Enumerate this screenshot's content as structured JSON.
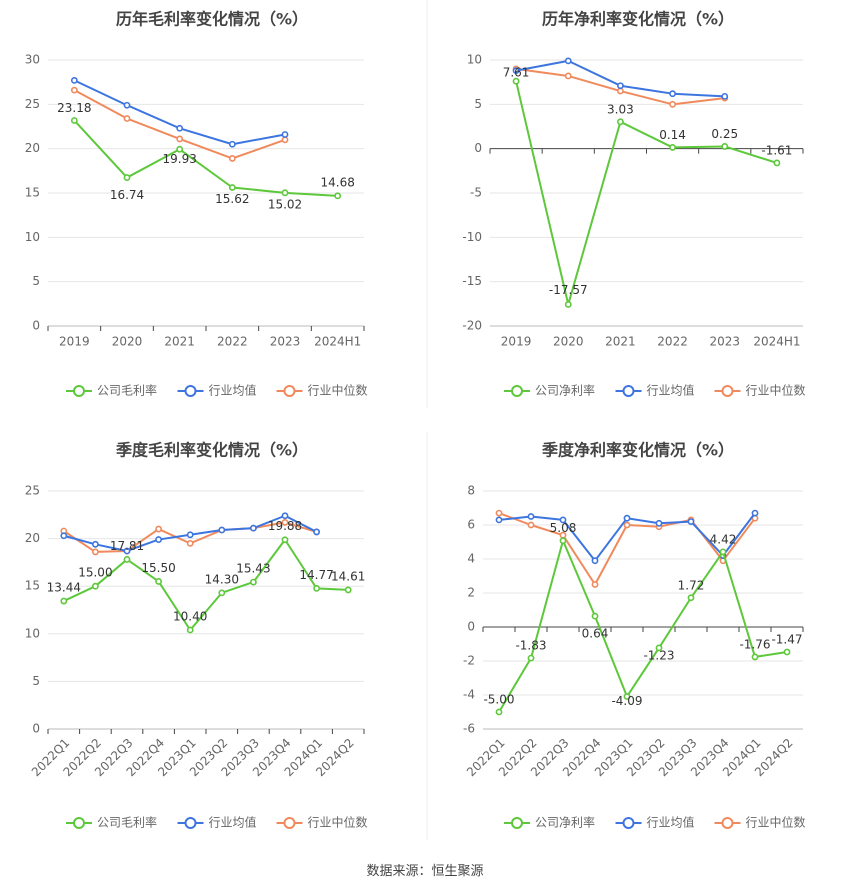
{
  "colors": {
    "company": "#5cc83a",
    "avg": "#3d75e0",
    "median": "#f08a5d",
    "grid": "#e6e6e6",
    "axis": "#bbbbbb",
    "tick": "#666666",
    "title": "#444444",
    "label": "#333333"
  },
  "legend_labels": [
    "公司毛利率",
    "行业均值",
    "行业中位数",
    "公司净利率"
  ],
  "source": "数据来源：恒生聚源",
  "chart_data": [
    {
      "type": "line",
      "title": "历年毛利率变化情况（%）",
      "categories": [
        "2019",
        "2020",
        "2021",
        "2022",
        "2023",
        "2024H1"
      ],
      "ylim": [
        0,
        30
      ],
      "yticks": [
        0,
        5,
        10,
        15,
        20,
        25,
        30
      ],
      "series": [
        {
          "name": "公司毛利率",
          "key": "company",
          "values": [
            23.18,
            16.74,
            19.93,
            15.62,
            15.02,
            14.68
          ],
          "labels": [
            "23.18",
            "16.74",
            "19.93",
            "15.62",
            "15.02",
            "14.68"
          ]
        },
        {
          "name": "行业均值",
          "key": "avg",
          "values": [
            27.7,
            24.9,
            22.3,
            20.5,
            21.6,
            null
          ]
        },
        {
          "name": "行业中位数",
          "key": "median",
          "values": [
            26.6,
            23.4,
            21.1,
            18.9,
            21.0,
            null
          ]
        }
      ]
    },
    {
      "type": "line",
      "title": "历年净利率变化情况（%）",
      "categories": [
        "2019",
        "2020",
        "2021",
        "2022",
        "2023",
        "2024H1"
      ],
      "ylim": [
        -20,
        10
      ],
      "yticks": [
        -20,
        -15,
        -10,
        -5,
        0,
        5,
        10
      ],
      "series": [
        {
          "name": "公司净利率",
          "key": "company",
          "values": [
            7.61,
            -17.57,
            3.03,
            0.14,
            0.25,
            -1.61
          ],
          "labels": [
            "7.61",
            "-17.57",
            "3.03",
            "0.14",
            "0.25",
            "-1.61"
          ]
        },
        {
          "name": "行业均值",
          "key": "avg",
          "values": [
            8.8,
            9.9,
            7.1,
            6.2,
            5.9,
            null
          ]
        },
        {
          "name": "行业中位数",
          "key": "median",
          "values": [
            9.0,
            8.2,
            6.5,
            5.0,
            5.7,
            null
          ]
        }
      ]
    },
    {
      "type": "line",
      "title": "季度毛利率变化情况（%）",
      "categories": [
        "2022Q1",
        "2022Q2",
        "2022Q3",
        "2022Q4",
        "2023Q1",
        "2023Q2",
        "2023Q3",
        "2023Q4",
        "2024Q1",
        "2024Q2"
      ],
      "ylim": [
        0,
        25
      ],
      "yticks": [
        0,
        5,
        10,
        15,
        20,
        25
      ],
      "series": [
        {
          "name": "公司毛利率",
          "key": "company",
          "values": [
            13.44,
            15.0,
            17.81,
            15.5,
            10.4,
            14.3,
            15.43,
            19.88,
            14.77,
            14.61
          ],
          "labels": [
            "13.44",
            "15.00",
            "17.81",
            "15.50",
            "10.40",
            "14.30",
            "15.43",
            "19.88",
            "14.77",
            "14.61"
          ]
        },
        {
          "name": "行业均值",
          "key": "avg",
          "values": [
            20.3,
            19.4,
            18.7,
            19.9,
            20.4,
            20.9,
            21.1,
            22.4,
            20.7,
            null
          ]
        },
        {
          "name": "行业中位数",
          "key": "median",
          "values": [
            20.8,
            18.6,
            18.7,
            21.0,
            19.5,
            20.9,
            21.1,
            21.7,
            20.7,
            null
          ]
        }
      ]
    },
    {
      "type": "line",
      "title": "季度净利率变化情况（%）",
      "categories": [
        "2022Q1",
        "2022Q2",
        "2022Q3",
        "2022Q4",
        "2023Q1",
        "2023Q2",
        "2023Q3",
        "2023Q4",
        "2024Q1",
        "2024Q2"
      ],
      "ylim": [
        -6,
        8
      ],
      "yticks": [
        -6,
        -4,
        -2,
        0,
        2,
        4,
        6,
        8
      ],
      "series": [
        {
          "name": "公司净利率",
          "key": "company",
          "values": [
            -5.0,
            -1.83,
            5.08,
            0.64,
            -4.09,
            -1.23,
            1.72,
            4.42,
            -1.76,
            -1.47
          ],
          "labels": [
            "-5.00",
            "-1.83",
            "5.08",
            "0.64",
            "-4.09",
            "-1.23",
            "1.72",
            "4.42",
            "-1.76",
            "-1.47"
          ]
        },
        {
          "name": "行业均值",
          "key": "avg",
          "values": [
            6.3,
            6.5,
            6.3,
            3.9,
            6.4,
            6.1,
            6.2,
            4.2,
            6.7,
            null
          ]
        },
        {
          "name": "行业中位数",
          "key": "median",
          "values": [
            6.7,
            6.0,
            5.4,
            2.5,
            6.0,
            5.9,
            6.3,
            3.9,
            6.4,
            null
          ]
        }
      ]
    }
  ]
}
